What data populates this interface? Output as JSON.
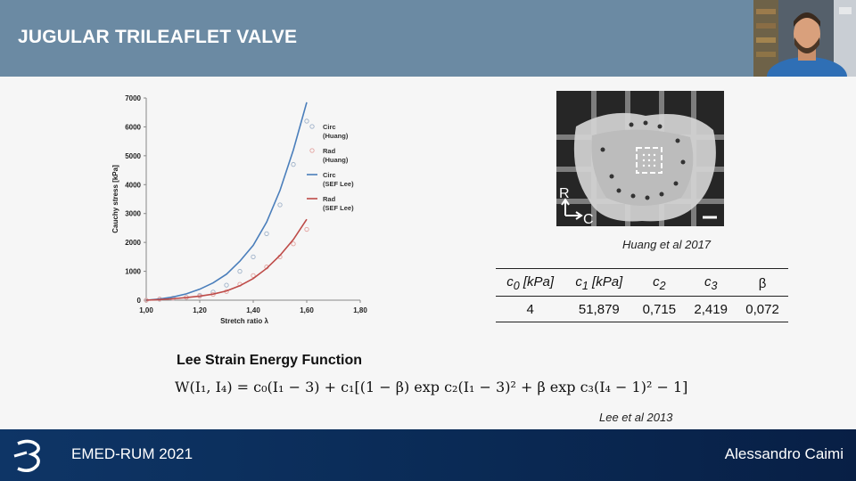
{
  "header": {
    "title": "JUGULAR TRILEAFLET VALVE"
  },
  "photo": {
    "label_r": "R",
    "label_c": "C",
    "caption": "Huang et al 2017"
  },
  "params_table": {
    "headers": [
      "c0 [kPa]",
      "c1 [kPa]",
      "c2",
      "c3",
      "β"
    ],
    "values": [
      "4",
      "51,879",
      "0,715",
      "2,419",
      "0,072"
    ]
  },
  "equation": {
    "title": "Lee Strain Energy Function",
    "formula": "W(I₁, I₄) = c₀(I₁ − 3) + c₁[(1 − β) exp c₂(I₁ − 3)² + β exp c₃(I₄ − 1)² − 1]",
    "caption": "Lee et al 2013"
  },
  "footer": {
    "left": "EMED-RUM 2021",
    "right": "Alessandro Caimi"
  },
  "chart_data": {
    "type": "line",
    "title": "",
    "xlabel": "Stretch ratio λ",
    "ylabel": "Cauchy stress [kPa]",
    "xlim": [
      1.0,
      1.8
    ],
    "ylim": [
      0,
      7000
    ],
    "x_ticks": [
      "1,00",
      "1,20",
      "1,40",
      "1,60",
      "1,80"
    ],
    "y_ticks": [
      "0",
      "1000",
      "2000",
      "3000",
      "4000",
      "5000",
      "6000",
      "7000"
    ],
    "grid": false,
    "legend_position": "right",
    "colors": {
      "circ_sef": "#4a7ebb",
      "rad_sef": "#be4b48",
      "circ_huang": "#9fb2c9",
      "rad_huang": "#e3a3a0"
    },
    "series": [
      {
        "name": "Circ (Huang)",
        "style": "markers",
        "x": [
          1.0,
          1.05,
          1.1,
          1.15,
          1.2,
          1.25,
          1.3,
          1.35,
          1.4,
          1.45,
          1.5,
          1.55,
          1.6
        ],
        "y": [
          0,
          30,
          60,
          100,
          170,
          280,
          520,
          1000,
          1500,
          2300,
          3300,
          4700,
          6200
        ]
      },
      {
        "name": "Rad (Huang)",
        "style": "markers",
        "x": [
          1.0,
          1.05,
          1.1,
          1.15,
          1.2,
          1.25,
          1.3,
          1.35,
          1.4,
          1.45,
          1.5,
          1.55,
          1.6
        ],
        "y": [
          0,
          40,
          70,
          100,
          140,
          200,
          300,
          550,
          850,
          1150,
          1500,
          1950,
          2450
        ]
      },
      {
        "name": "Circ (SEF Lee)",
        "style": "line",
        "x": [
          1.0,
          1.05,
          1.1,
          1.15,
          1.2,
          1.25,
          1.3,
          1.35,
          1.4,
          1.45,
          1.5,
          1.55,
          1.6
        ],
        "y": [
          0,
          40,
          110,
          220,
          380,
          600,
          900,
          1350,
          1900,
          2700,
          3800,
          5200,
          6850
        ]
      },
      {
        "name": "Rad (SEF Lee)",
        "style": "line",
        "x": [
          1.0,
          1.05,
          1.1,
          1.15,
          1.2,
          1.25,
          1.3,
          1.35,
          1.4,
          1.45,
          1.5,
          1.55,
          1.6
        ],
        "y": [
          0,
          20,
          50,
          90,
          140,
          210,
          320,
          500,
          750,
          1100,
          1550,
          2100,
          2800
        ]
      }
    ]
  }
}
